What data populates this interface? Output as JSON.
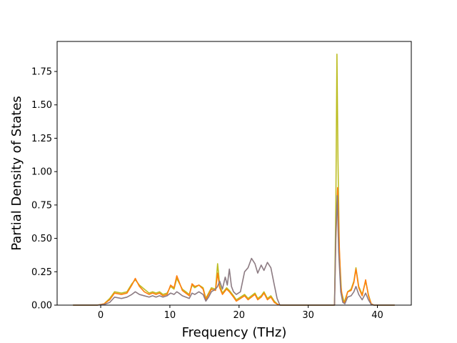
{
  "chart_data": {
    "type": "line",
    "title": "",
    "xlabel": "Frequency (THz)",
    "ylabel": "Partial Density of States",
    "xlim": [
      -6.3,
      44.9
    ],
    "ylim": [
      0.0,
      1.975
    ],
    "xticks": [
      0,
      10,
      20,
      30,
      40
    ],
    "yticks": [
      0.0,
      0.25,
      0.5,
      0.75,
      1.0,
      1.25,
      1.5,
      1.75
    ],
    "ytick_labels": [
      "0.00",
      "0.25",
      "0.50",
      "0.75",
      "1.00",
      "1.25",
      "1.50",
      "1.75"
    ],
    "grid": false,
    "legend": "none",
    "series": [
      {
        "color": "#bcbd22",
        "points": [
          [
            -4,
            0
          ],
          [
            -0.5,
            0
          ],
          [
            0.5,
            0.01
          ],
          [
            1.3,
            0.05
          ],
          [
            2,
            0.1
          ],
          [
            3,
            0.09
          ],
          [
            3.8,
            0.1
          ],
          [
            4.5,
            0.16
          ],
          [
            5,
            0.19
          ],
          [
            5.6,
            0.15
          ],
          [
            6.3,
            0.12
          ],
          [
            7,
            0.09
          ],
          [
            7.5,
            0.1
          ],
          [
            8,
            0.09
          ],
          [
            8.5,
            0.1
          ],
          [
            9,
            0.08
          ],
          [
            9.6,
            0.09
          ],
          [
            10.1,
            0.14
          ],
          [
            10.6,
            0.12
          ],
          [
            11,
            0.2
          ],
          [
            11.3,
            0.17
          ],
          [
            11.8,
            0.12
          ],
          [
            12.3,
            0.1
          ],
          [
            12.8,
            0.08
          ],
          [
            13.2,
            0.15
          ],
          [
            13.6,
            0.13
          ],
          [
            14.2,
            0.15
          ],
          [
            14.8,
            0.13
          ],
          [
            15.2,
            0.05
          ],
          [
            15.6,
            0.09
          ],
          [
            16,
            0.13
          ],
          [
            16.6,
            0.12
          ],
          [
            16.9,
            0.31
          ],
          [
            17.2,
            0.15
          ],
          [
            17.6,
            0.09
          ],
          [
            18.2,
            0.13
          ],
          [
            18.6,
            0.11
          ],
          [
            19.2,
            0.07
          ],
          [
            19.6,
            0.04
          ],
          [
            20.2,
            0.06
          ],
          [
            20.8,
            0.08
          ],
          [
            21.3,
            0.05
          ],
          [
            21.8,
            0.07
          ],
          [
            22.3,
            0.09
          ],
          [
            22.7,
            0.05
          ],
          [
            23.2,
            0.07
          ],
          [
            23.6,
            0.1
          ],
          [
            24.1,
            0.05
          ],
          [
            24.6,
            0.07
          ],
          [
            25.1,
            0.03
          ],
          [
            25.6,
            0.005
          ],
          [
            26,
            0
          ],
          [
            33.8,
            0
          ],
          [
            34,
            0.8
          ],
          [
            34.15,
            1.88
          ],
          [
            34.3,
            1.1
          ],
          [
            34.5,
            0.4
          ],
          [
            34.8,
            0.1
          ],
          [
            35.2,
            0.02
          ],
          [
            35.7,
            0.1
          ],
          [
            36.2,
            0.12
          ],
          [
            36.6,
            0.18
          ],
          [
            36.9,
            0.28
          ],
          [
            37.3,
            0.14
          ],
          [
            37.8,
            0.08
          ],
          [
            38.3,
            0.18
          ],
          [
            38.7,
            0.08
          ],
          [
            39.1,
            0.01
          ],
          [
            39.5,
            0
          ],
          [
            42.5,
            0
          ]
        ]
      },
      {
        "color": "#ff7f0e",
        "points": [
          [
            -4,
            0
          ],
          [
            -0.5,
            0
          ],
          [
            0.5,
            0.01
          ],
          [
            1.3,
            0.04
          ],
          [
            2,
            0.09
          ],
          [
            3,
            0.08
          ],
          [
            3.8,
            0.09
          ],
          [
            4.5,
            0.15
          ],
          [
            5,
            0.2
          ],
          [
            5.6,
            0.14
          ],
          [
            6.3,
            0.1
          ],
          [
            7,
            0.08
          ],
          [
            7.5,
            0.09
          ],
          [
            8,
            0.08
          ],
          [
            8.5,
            0.09
          ],
          [
            9,
            0.07
          ],
          [
            9.6,
            0.08
          ],
          [
            10.1,
            0.15
          ],
          [
            10.6,
            0.13
          ],
          [
            11,
            0.22
          ],
          [
            11.3,
            0.18
          ],
          [
            11.8,
            0.11
          ],
          [
            12.3,
            0.09
          ],
          [
            12.8,
            0.07
          ],
          [
            13.2,
            0.16
          ],
          [
            13.6,
            0.14
          ],
          [
            14.2,
            0.15
          ],
          [
            14.8,
            0.12
          ],
          [
            15.2,
            0.04
          ],
          [
            15.6,
            0.08
          ],
          [
            16,
            0.12
          ],
          [
            16.6,
            0.11
          ],
          [
            16.9,
            0.24
          ],
          [
            17.2,
            0.13
          ],
          [
            17.6,
            0.08
          ],
          [
            18.2,
            0.12
          ],
          [
            18.6,
            0.1
          ],
          [
            19.2,
            0.06
          ],
          [
            19.6,
            0.03
          ],
          [
            20.2,
            0.05
          ],
          [
            20.8,
            0.07
          ],
          [
            21.3,
            0.04
          ],
          [
            21.8,
            0.06
          ],
          [
            22.3,
            0.08
          ],
          [
            22.7,
            0.04
          ],
          [
            23.2,
            0.06
          ],
          [
            23.6,
            0.09
          ],
          [
            24.1,
            0.04
          ],
          [
            24.6,
            0.06
          ],
          [
            25.1,
            0.02
          ],
          [
            25.6,
            0.005
          ],
          [
            26,
            0
          ],
          [
            33.8,
            0
          ],
          [
            34,
            0.5
          ],
          [
            34.25,
            0.88
          ],
          [
            34.45,
            0.5
          ],
          [
            34.7,
            0.15
          ],
          [
            35,
            0.03
          ],
          [
            35.3,
            0.02
          ],
          [
            35.7,
            0.1
          ],
          [
            36.2,
            0.11
          ],
          [
            36.6,
            0.17
          ],
          [
            36.9,
            0.27
          ],
          [
            37.3,
            0.13
          ],
          [
            37.8,
            0.07
          ],
          [
            38.3,
            0.19
          ],
          [
            38.7,
            0.07
          ],
          [
            39.1,
            0.01
          ],
          [
            39.5,
            0
          ],
          [
            42.5,
            0
          ]
        ]
      },
      {
        "color": "#8c7b82",
        "points": [
          [
            -4,
            0
          ],
          [
            -0.5,
            0
          ],
          [
            0.5,
            0.005
          ],
          [
            1.3,
            0.02
          ],
          [
            2,
            0.06
          ],
          [
            3,
            0.05
          ],
          [
            3.8,
            0.06
          ],
          [
            4.5,
            0.08
          ],
          [
            5,
            0.1
          ],
          [
            5.6,
            0.08
          ],
          [
            6.3,
            0.07
          ],
          [
            7,
            0.06
          ],
          [
            7.5,
            0.07
          ],
          [
            8,
            0.06
          ],
          [
            8.5,
            0.07
          ],
          [
            9,
            0.06
          ],
          [
            9.6,
            0.07
          ],
          [
            10.1,
            0.09
          ],
          [
            10.6,
            0.08
          ],
          [
            11,
            0.1
          ],
          [
            11.3,
            0.09
          ],
          [
            11.8,
            0.07
          ],
          [
            12.3,
            0.06
          ],
          [
            12.8,
            0.05
          ],
          [
            13.2,
            0.09
          ],
          [
            13.6,
            0.08
          ],
          [
            14.2,
            0.1
          ],
          [
            14.8,
            0.08
          ],
          [
            15.2,
            0.03
          ],
          [
            15.6,
            0.06
          ],
          [
            16,
            0.1
          ],
          [
            16.6,
            0.12
          ],
          [
            16.9,
            0.14
          ],
          [
            17.2,
            0.18
          ],
          [
            17.6,
            0.12
          ],
          [
            18,
            0.21
          ],
          [
            18.3,
            0.15
          ],
          [
            18.6,
            0.27
          ],
          [
            18.9,
            0.14
          ],
          [
            19.2,
            0.1
          ],
          [
            19.6,
            0.08
          ],
          [
            20.2,
            0.1
          ],
          [
            20.8,
            0.25
          ],
          [
            21.3,
            0.28
          ],
          [
            21.8,
            0.35
          ],
          [
            22.3,
            0.31
          ],
          [
            22.7,
            0.24
          ],
          [
            23.2,
            0.3
          ],
          [
            23.6,
            0.26
          ],
          [
            24.1,
            0.32
          ],
          [
            24.6,
            0.28
          ],
          [
            25.1,
            0.15
          ],
          [
            25.5,
            0.05
          ],
          [
            25.9,
            0
          ],
          [
            33.8,
            0
          ],
          [
            34,
            0.55
          ],
          [
            34.2,
            0.82
          ],
          [
            34.4,
            0.4
          ],
          [
            34.7,
            0.1
          ],
          [
            35,
            0.02
          ],
          [
            35.3,
            0.01
          ],
          [
            35.7,
            0.06
          ],
          [
            36.2,
            0.07
          ],
          [
            36.6,
            0.1
          ],
          [
            36.9,
            0.14
          ],
          [
            37.3,
            0.08
          ],
          [
            37.8,
            0.04
          ],
          [
            38.3,
            0.09
          ],
          [
            38.7,
            0.04
          ],
          [
            39.1,
            0.005
          ],
          [
            39.5,
            0
          ],
          [
            42.5,
            0
          ]
        ]
      }
    ]
  }
}
